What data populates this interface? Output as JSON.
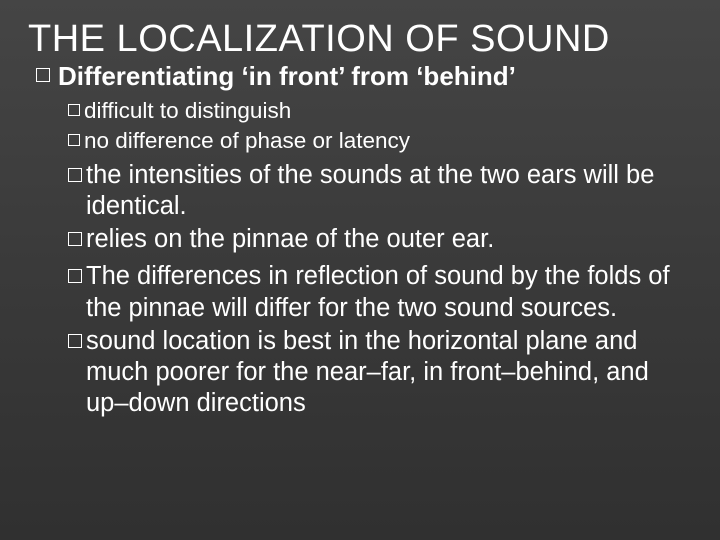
{
  "slide": {
    "background_gradient": [
      "#454545",
      "#3a3a3a",
      "#303030"
    ],
    "text_color": "#ffffff",
    "title": "THE LOCALIZATION OF SOUND",
    "title_fontsize": 38,
    "bullets": {
      "level1": {
        "text": "Differentiating ‘in front’ from ‘behind’",
        "fontsize": 26,
        "fontweight": "bold",
        "marker": "hollow-square"
      },
      "level2_small": [
        {
          "text": "difficult to distinguish"
        },
        {
          "text": "no difference of phase or latency"
        }
      ],
      "level2_small_style": {
        "fontsize": 22.5,
        "fontweight": "normal",
        "marker": "hollow-square"
      },
      "level2_large": [
        {
          "text": "the intensities of the sounds at the two ears will be identical."
        },
        {
          "text": "relies on the pinnae of the outer ear."
        },
        {
          "text": "The differences in reflection of sound by the folds of the pinnae will differ for the two sound sources."
        },
        {
          "text": "sound location is best in the horizontal plane and much poorer for the near–far, in front–behind, and up–down directions"
        }
      ],
      "level2_large_style": {
        "fontsize": 25.5,
        "fontweight": "normal",
        "marker": "hollow-square"
      }
    }
  }
}
